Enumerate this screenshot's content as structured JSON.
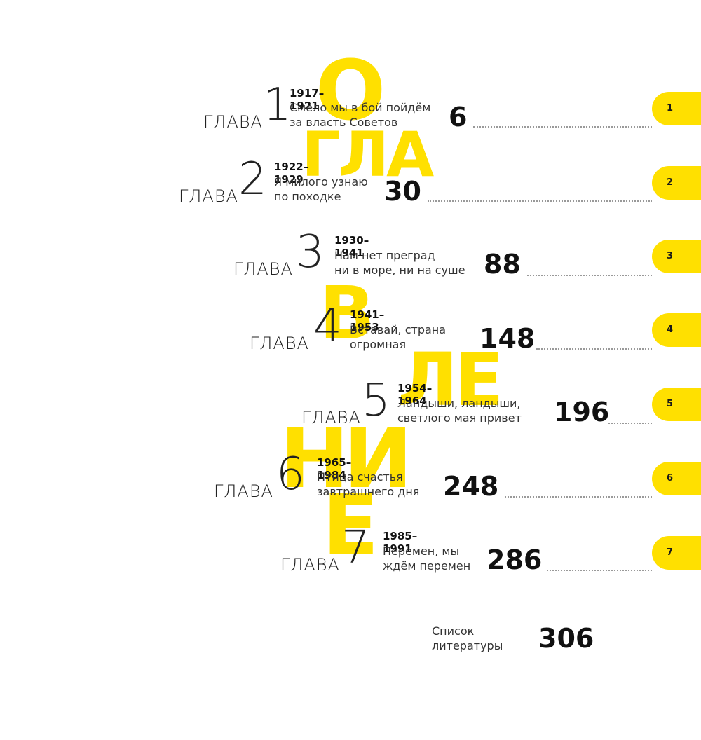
{
  "heading_letters": [
    "О",
    "ГЛА",
    "В",
    "ЛЕ",
    "НИ",
    "Е"
  ],
  "chapter_word": "ГЛАВА",
  "chapters": [
    {
      "number": "1",
      "years": "1917–1921",
      "title_line1": "Смело мы в бой пойдём",
      "title_line2": "за власть Советов",
      "page": "6"
    },
    {
      "number": "2",
      "years": "1922–1929",
      "title_line1": "Я милого узнаю",
      "title_line2": "по походке",
      "page": "30"
    },
    {
      "number": "3",
      "years": "1930–1941",
      "title_line1": "Нам нет преград",
      "title_line2": "ни в море, ни на суше",
      "page": "88"
    },
    {
      "number": "4",
      "years": "1941–1953",
      "title_line1": "Вставай, страна",
      "title_line2": "огромная",
      "page": "148"
    },
    {
      "number": "5",
      "years": "1954–1964",
      "title_line1": "Ландыши, ландыши,",
      "title_line2": "светлого мая привет",
      "page": "196"
    },
    {
      "number": "6",
      "years": "1965–1984",
      "title_line1": "Птица счастья",
      "title_line2": "завтрашнего дня",
      "page": "248"
    },
    {
      "number": "7",
      "years": "1985–1991",
      "title_line1": "Перемен, мы",
      "title_line2": "ждём перемен",
      "page": "286"
    }
  ],
  "tabs": [
    "1",
    "2",
    "3",
    "4",
    "5",
    "6",
    "7"
  ],
  "bibliography": {
    "line1": "Список",
    "line2": "литературы",
    "page": "306"
  },
  "colors": {
    "accent": "#ffe000",
    "text": "#1a1a1a",
    "dots": "#999999"
  }
}
